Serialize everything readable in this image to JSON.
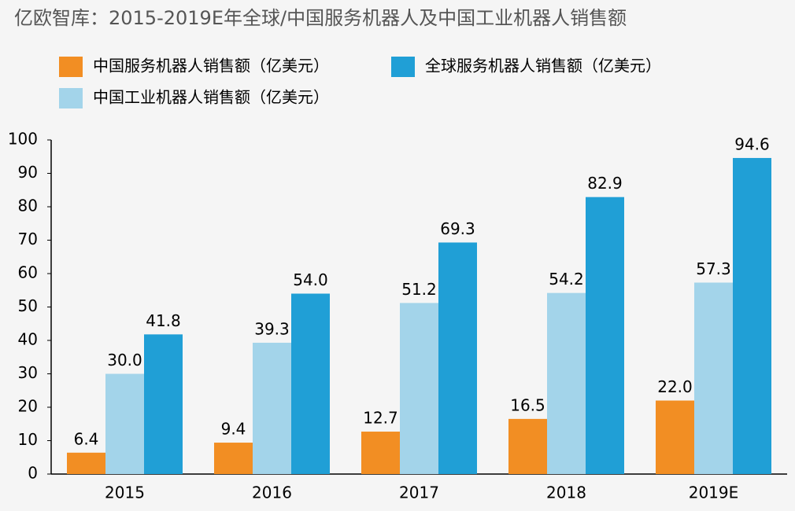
{
  "chart_data": {
    "type": "bar",
    "title": "亿欧智库：2015-2019E年全球/中国服务机器人及中国工业机器人销售额",
    "categories": [
      "2015",
      "2016",
      "2017",
      "2018",
      "2019E"
    ],
    "series": [
      {
        "name": "中国服务机器人销售额（亿美元）",
        "color": "#f28e23",
        "values": [
          6.4,
          9.4,
          12.7,
          16.5,
          22
        ],
        "value_labels": [
          "6.4",
          "9.4",
          "12.7",
          "16.5",
          "22.0"
        ]
      },
      {
        "name": "中国工业机器人销售额（亿美元）",
        "color": "#a3d4ea",
        "values": [
          30,
          39.3,
          51.2,
          54.2,
          57.3
        ],
        "value_labels": [
          "30.0",
          "39.3",
          "51.2",
          "54.2",
          "57.3"
        ]
      },
      {
        "name": "全球服务机器人销售额（亿美元）",
        "color": "#209fd6",
        "values": [
          41.8,
          54,
          69.3,
          82.9,
          94.6
        ],
        "value_labels": [
          "41.8",
          "54.0",
          "69.3",
          "82.9",
          "94.6"
        ]
      }
    ],
    "ylim": [
      0,
      100
    ],
    "yticks": [
      0,
      10,
      20,
      30,
      40,
      50,
      60,
      70,
      80,
      90,
      100
    ],
    "grid": false
  }
}
